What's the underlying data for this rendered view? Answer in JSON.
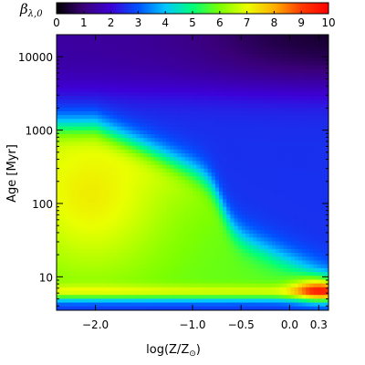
{
  "chart_data": {
    "type": "heatmap",
    "colorbar": {
      "label_main": "β",
      "label_sub": "λ,0",
      "range": [
        0,
        10
      ],
      "ticks": [
        "0",
        "1",
        "2",
        "3",
        "4",
        "5",
        "6",
        "7",
        "8",
        "9",
        "10"
      ],
      "colormap": [
        "#000000",
        "#3a007a",
        "#3d00d6",
        "#0052ff",
        "#00c6ff",
        "#00ff7a",
        "#7cff00",
        "#eaff00",
        "#ffb000",
        "#ff3a00",
        "#ff0000"
      ]
    },
    "x_axis": {
      "label_main": "log(Z/Z",
      "label_sub": "⊙",
      "label_close": ")",
      "range": [
        -2.4,
        0.4
      ],
      "ticks": [
        {
          "value": -2.0,
          "label": "−2.0"
        },
        {
          "value": -1.0,
          "label": "−1.0"
        },
        {
          "value": -0.5,
          "label": "−0.5"
        },
        {
          "value": 0.0,
          "label": "0.0"
        },
        {
          "value": 0.3,
          "label": "0.3"
        }
      ]
    },
    "y_axis": {
      "label": "Age [Myr]",
      "scale": "log",
      "range": [
        3.5,
        20000
      ],
      "ticks": [
        {
          "value": 10,
          "label": "10"
        },
        {
          "value": 100,
          "label": "100"
        },
        {
          "value": 1000,
          "label": "1000"
        },
        {
          "value": 10000,
          "label": "10000"
        }
      ]
    },
    "grid": false
  }
}
